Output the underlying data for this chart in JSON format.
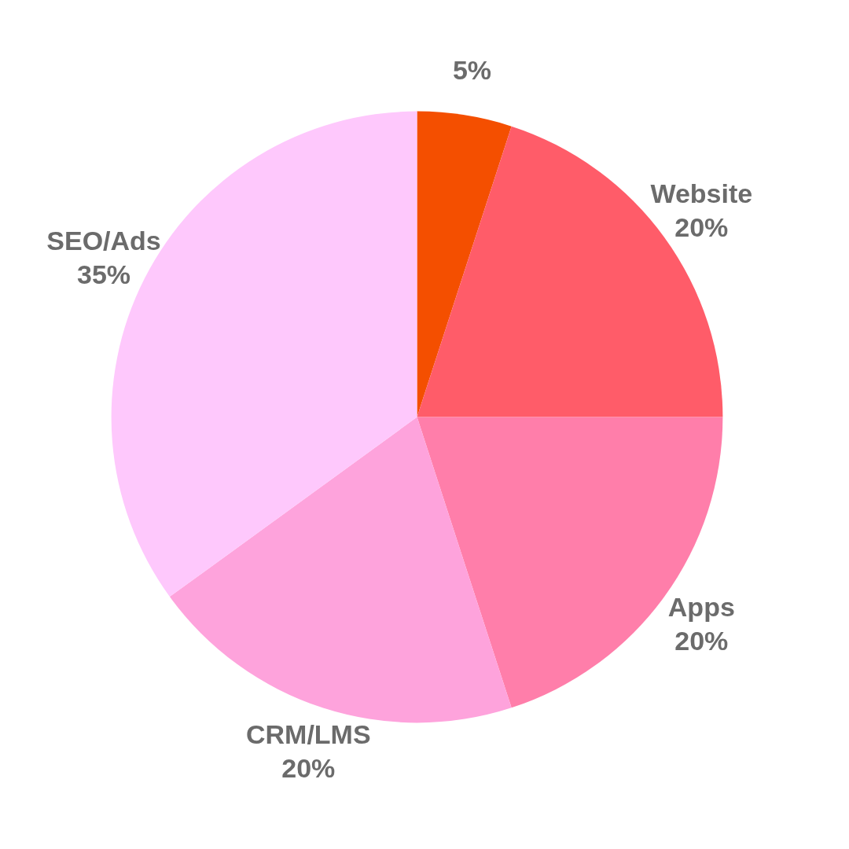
{
  "chart_data": {
    "type": "pie",
    "categories": [
      null,
      "Website",
      "Apps",
      "CRM/LMS",
      "SEO/Ads"
    ],
    "values": [
      5,
      20,
      20,
      20,
      35
    ],
    "colors": [
      "#f44f00",
      "#ff5c69",
      "#ff7eaa",
      "#fea3dc",
      "#fec8fc"
    ],
    "value_labels": [
      "5%",
      "20%",
      "20%",
      "20%",
      "35%"
    ],
    "legend": false
  }
}
